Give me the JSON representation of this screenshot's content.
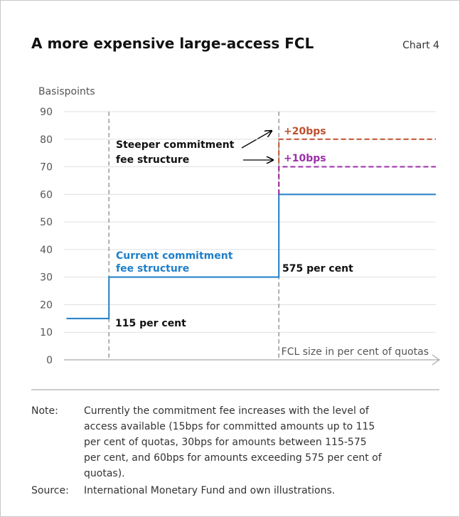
{
  "chart_data": {
    "type": "step",
    "title": "A more expensive large-access FCL",
    "chart_number": "Chart 4",
    "ylabel": "Basispoints",
    "xlabel": "FCL size in per cent of quotas",
    "xlim": [
      0,
      1000
    ],
    "ylim": [
      0,
      90
    ],
    "yticks": [
      0,
      10,
      20,
      30,
      40,
      50,
      60,
      70,
      80,
      90
    ],
    "grid": true,
    "vlines": [
      115,
      575
    ],
    "series": [
      {
        "name": "Current commitment fee structure",
        "color": "#1f7fc9",
        "dash": false,
        "x": [
          0,
          115,
          575,
          1000
        ],
        "values": [
          15,
          30,
          60,
          60
        ]
      },
      {
        "name": "+20bps",
        "color": "#c0502e",
        "dash": true,
        "x": [
          575,
          575,
          1000
        ],
        "values": [
          60,
          80,
          80
        ]
      },
      {
        "name": "+10bps",
        "color": "#9b2fa8",
        "dash": true,
        "x": [
          575,
          575,
          1000
        ],
        "values": [
          60,
          70,
          70
        ]
      }
    ],
    "annotations": [
      {
        "text": "115 per cent"
      },
      {
        "text": "575 per cent"
      },
      {
        "text": [
          "Steeper commitment",
          "fee structure"
        ]
      }
    ],
    "legend_labels": [
      "Current commitment",
      "fee structure"
    ],
    "note_label": "Note:",
    "note": [
      "Currently the commitment fee increases with the level of",
      "access available (15bps for committed amounts up to 115",
      "per cent of quotas, 30bps for amounts between 115-575",
      "per cent, and 60bps for amounts exceeding 575 per cent of",
      "quotas)."
    ],
    "source_label": "Source:",
    "source": "International Monetary Fund and own illustrations."
  }
}
